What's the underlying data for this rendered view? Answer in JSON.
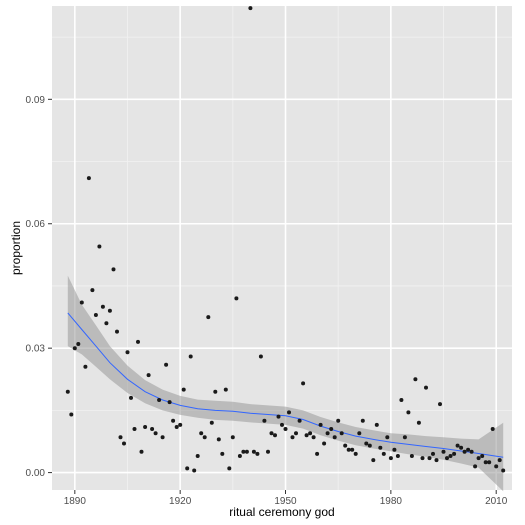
{
  "chart_data": {
    "type": "scatter",
    "title": "",
    "xlabel": "ritual ceremony god",
    "ylabel": "proportion",
    "xlim": [
      1883.5,
      2014.5
    ],
    "ylim": [
      -0.0042,
      0.1125
    ],
    "x_ticks": [
      1890,
      1920,
      1950,
      1980,
      2010
    ],
    "x_tick_labels": [
      "1890",
      "1920",
      "1950",
      "1980",
      "2010"
    ],
    "y_ticks": [
      0.0,
      0.03,
      0.06,
      0.09
    ],
    "y_tick_labels": [
      "0.00",
      "0.03",
      "0.06",
      "0.09"
    ],
    "grid": true,
    "legend": "none",
    "colors": {
      "panel_background": "#e5e5e5",
      "grid_major": "#ffffff",
      "grid_minor": "#f2f2f2",
      "points": "#1a1a1a",
      "smooth_line": "#3366ff",
      "confidence_band": "#999999"
    },
    "series": [
      {
        "kind": "points",
        "points": [
          [
            1888,
            0.0195
          ],
          [
            1889,
            0.014
          ],
          [
            1890,
            0.03
          ],
          [
            1891,
            0.031
          ],
          [
            1892,
            0.041
          ],
          [
            1893,
            0.0255
          ],
          [
            1894,
            0.071
          ],
          [
            1895,
            0.044
          ],
          [
            1896,
            0.038
          ],
          [
            1897,
            0.0545
          ],
          [
            1898,
            0.04
          ],
          [
            1899,
            0.036
          ],
          [
            1900,
            0.039
          ],
          [
            1901,
            0.049
          ],
          [
            1902,
            0.034
          ],
          [
            1903,
            0.0085
          ],
          [
            1904,
            0.007
          ],
          [
            1905,
            0.029
          ],
          [
            1906,
            0.018
          ],
          [
            1907,
            0.0105
          ],
          [
            1908,
            0.0315
          ],
          [
            1909,
            0.005
          ],
          [
            1910,
            0.011
          ],
          [
            1911,
            0.0235
          ],
          [
            1912,
            0.0105
          ],
          [
            1913,
            0.0095
          ],
          [
            1914,
            0.0175
          ],
          [
            1915,
            0.0085
          ],
          [
            1916,
            0.026
          ],
          [
            1917,
            0.017
          ],
          [
            1918,
            0.0125
          ],
          [
            1919,
            0.011
          ],
          [
            1920,
            0.0115
          ],
          [
            1921,
            0.02
          ],
          [
            1922,
            0.001
          ],
          [
            1923,
            0.028
          ],
          [
            1924,
            0.0005
          ],
          [
            1925,
            0.004
          ],
          [
            1926,
            0.0095
          ],
          [
            1927,
            0.0085
          ],
          [
            1928,
            0.0375
          ],
          [
            1929,
            0.012
          ],
          [
            1930,
            0.0195
          ],
          [
            1931,
            0.008
          ],
          [
            1932,
            0.0045
          ],
          [
            1933,
            0.02
          ],
          [
            1934,
            0.001
          ],
          [
            1935,
            0.0085
          ],
          [
            1936,
            0.042
          ],
          [
            1937,
            0.004
          ],
          [
            1938,
            0.005
          ],
          [
            1939,
            0.005
          ],
          [
            1940,
            0.112
          ],
          [
            1941,
            0.005
          ],
          [
            1942,
            0.0045
          ],
          [
            1943,
            0.028
          ],
          [
            1944,
            0.0125
          ],
          [
            1945,
            0.005
          ],
          [
            1946,
            0.0095
          ],
          [
            1947,
            0.009
          ],
          [
            1948,
            0.0135
          ],
          [
            1949,
            0.0115
          ],
          [
            1950,
            0.0105
          ],
          [
            1951,
            0.0145
          ],
          [
            1952,
            0.0085
          ],
          [
            1953,
            0.0095
          ],
          [
            1954,
            0.0125
          ],
          [
            1955,
            0.0215
          ],
          [
            1956,
            0.009
          ],
          [
            1957,
            0.0095
          ],
          [
            1958,
            0.0085
          ],
          [
            1959,
            0.0045
          ],
          [
            1960,
            0.0115
          ],
          [
            1961,
            0.007
          ],
          [
            1962,
            0.0095
          ],
          [
            1963,
            0.0105
          ],
          [
            1964,
            0.0085
          ],
          [
            1965,
            0.0125
          ],
          [
            1966,
            0.0095
          ],
          [
            1967,
            0.0065
          ],
          [
            1968,
            0.0055
          ],
          [
            1969,
            0.0055
          ],
          [
            1970,
            0.0045
          ],
          [
            1971,
            0.0095
          ],
          [
            1972,
            0.0125
          ],
          [
            1973,
            0.007
          ],
          [
            1974,
            0.0065
          ],
          [
            1975,
            0.003
          ],
          [
            1976,
            0.0115
          ],
          [
            1977,
            0.006
          ],
          [
            1978,
            0.0045
          ],
          [
            1979,
            0.0085
          ],
          [
            1980,
            0.0035
          ],
          [
            1981,
            0.0055
          ],
          [
            1982,
            0.004
          ],
          [
            1983,
            0.0175
          ],
          [
            1984,
            0.0085
          ],
          [
            1985,
            0.0145
          ],
          [
            1986,
            0.004
          ],
          [
            1987,
            0.0225
          ],
          [
            1988,
            0.012
          ],
          [
            1989,
            0.0035
          ],
          [
            1990,
            0.0205
          ],
          [
            1991,
            0.0035
          ],
          [
            1992,
            0.0045
          ],
          [
            1993,
            0.003
          ],
          [
            1994,
            0.0165
          ],
          [
            1995,
            0.005
          ],
          [
            1996,
            0.0035
          ],
          [
            1997,
            0.004
          ],
          [
            1998,
            0.0045
          ],
          [
            1999,
            0.0065
          ],
          [
            2000,
            0.006
          ],
          [
            2001,
            0.005
          ],
          [
            2002,
            0.0055
          ],
          [
            2003,
            0.005
          ],
          [
            2004,
            0.0015
          ],
          [
            2005,
            0.0035
          ],
          [
            2006,
            0.004
          ],
          [
            2007,
            0.0025
          ],
          [
            2008,
            0.0025
          ],
          [
            2009,
            0.0105
          ],
          [
            2010,
            0.0015
          ],
          [
            2011,
            0.003
          ],
          [
            2012,
            0.0005
          ]
        ]
      },
      {
        "kind": "smooth",
        "x": [
          1888,
          1892,
          1896,
          1900,
          1905,
          1910,
          1915,
          1920,
          1925,
          1930,
          1935,
          1940,
          1945,
          1950,
          1955,
          1960,
          1965,
          1970,
          1975,
          1980,
          1985,
          1990,
          1995,
          2000,
          2005,
          2012
        ],
        "y": [
          0.0385,
          0.0345,
          0.0305,
          0.0265,
          0.0225,
          0.0195,
          0.0175,
          0.0162,
          0.0154,
          0.015,
          0.0148,
          0.0143,
          0.014,
          0.0137,
          0.0128,
          0.0112,
          0.0099,
          0.0088,
          0.008,
          0.0073,
          0.0068,
          0.0063,
          0.0058,
          0.0052,
          0.0046,
          0.0037
        ],
        "lower": [
          0.0305,
          0.0285,
          0.0255,
          0.0225,
          0.0192,
          0.0167,
          0.015,
          0.0139,
          0.0132,
          0.0127,
          0.0125,
          0.0121,
          0.0118,
          0.0115,
          0.0106,
          0.009,
          0.0077,
          0.0066,
          0.0058,
          0.0051,
          0.0044,
          0.0038,
          0.0031,
          0.0022,
          0.0012,
          -0.0045
        ],
        "upper": [
          0.0475,
          0.0405,
          0.0355,
          0.0305,
          0.0258,
          0.0223,
          0.02,
          0.0185,
          0.0176,
          0.0173,
          0.0171,
          0.0165,
          0.0162,
          0.0159,
          0.015,
          0.0134,
          0.0121,
          0.011,
          0.0102,
          0.0095,
          0.0092,
          0.0088,
          0.0085,
          0.0082,
          0.008,
          0.012
        ]
      }
    ]
  }
}
